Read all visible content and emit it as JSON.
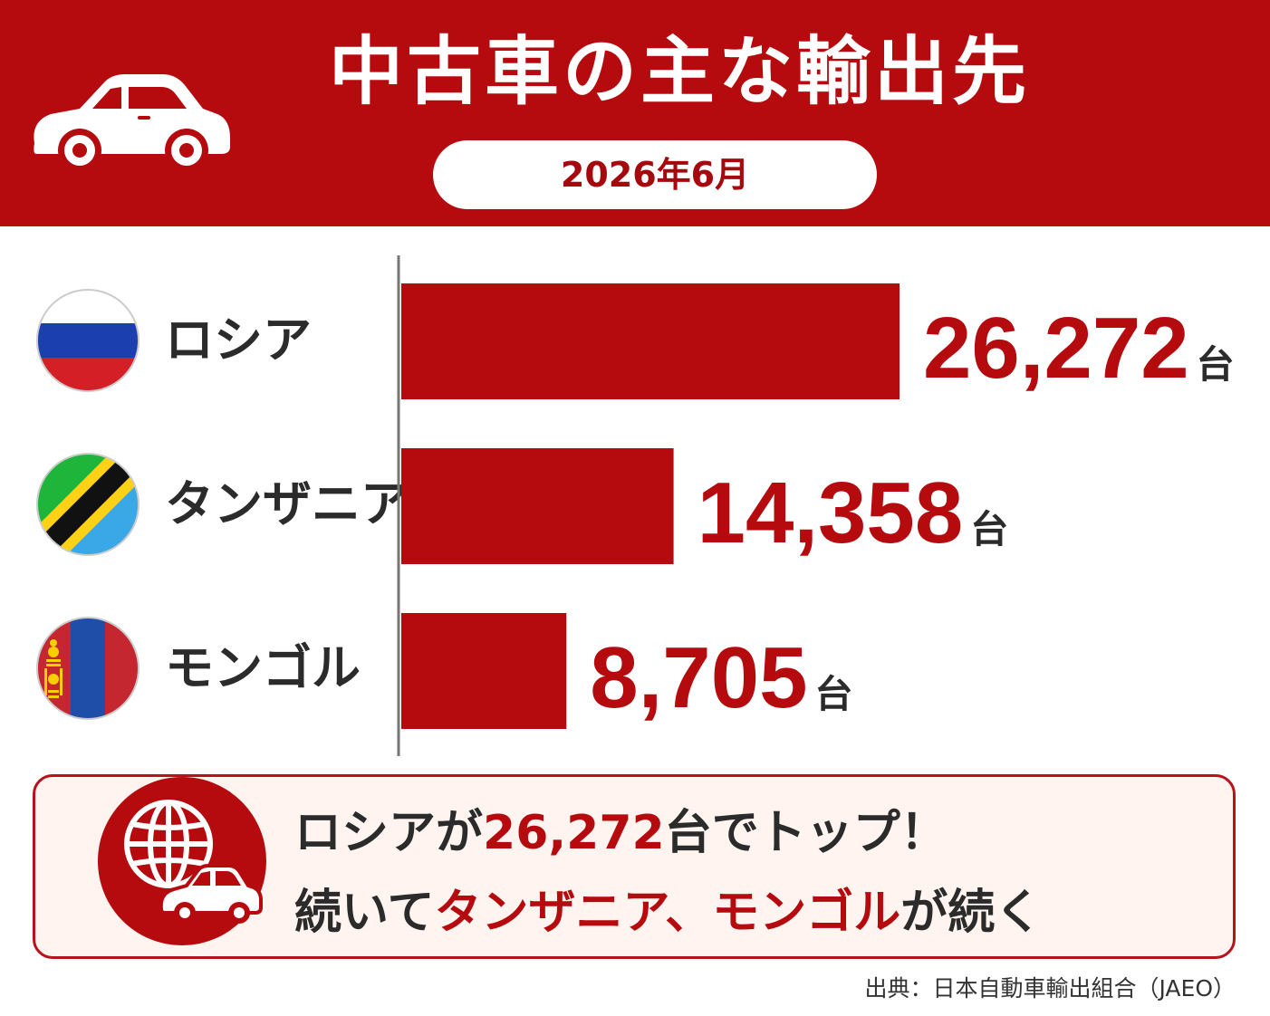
{
  "header": {
    "title": "中古車の主な輸出先",
    "date": "2026年6月",
    "icon": "car-icon"
  },
  "rows": [
    {
      "country": "ロシア",
      "flag": "russia-flag-icon"
    },
    {
      "country": "タンザニア",
      "flag": "tanzania-flag-icon"
    },
    {
      "country": "モンゴル",
      "flag": "mongolia-flag-icon"
    }
  ],
  "chart_data": {
    "type": "bar",
    "orientation": "horizontal",
    "categories": [
      "ロシア",
      "タンザニア",
      "モンゴル"
    ],
    "values": [
      26272,
      14358,
      8705
    ],
    "value_labels": [
      "26,272",
      "14,358",
      "8,705"
    ],
    "unit": "台",
    "xlim": [
      0,
      26272
    ],
    "grid": false,
    "legend": "none",
    "bar_color": "#b50a0e"
  },
  "footer": {
    "line1": {
      "a": "ロシアが",
      "b": "26,272",
      "c": "台でトップ！"
    },
    "line2": {
      "a": "続いて",
      "b": "タンザニア、モンゴル",
      "c": "が続く"
    },
    "icon": "globe-car-icon"
  },
  "source": "出典：日本自動車輸出組合（JAEO）",
  "colors": {
    "accent": "#b50a0e",
    "text": "#2b2b2b",
    "footer_bg": "#fff4ef"
  }
}
